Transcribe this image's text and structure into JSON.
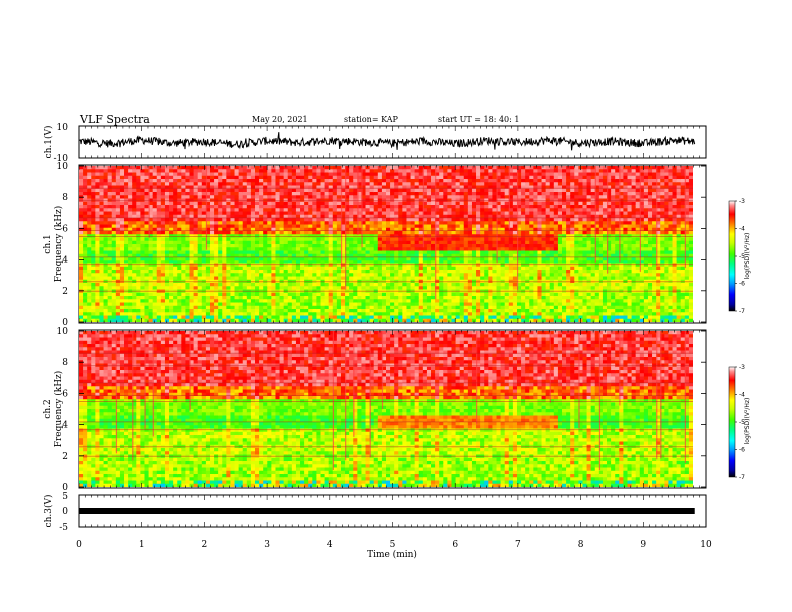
{
  "header": {
    "title": "VLF Spectra",
    "date": "May 20, 2021",
    "station": "station= KAP",
    "start": "start  UT =   18: 40: 1"
  },
  "chart_data": [
    {
      "type": "line",
      "panel": "ch1-waveform",
      "ylabel": "ch.1(V)",
      "ylim": [
        -10,
        10
      ],
      "yticks": [
        "10",
        "-10"
      ],
      "xlim": [
        0,
        10
      ],
      "data_extent_x": [
        0,
        9.82
      ],
      "series": [
        {
          "x": [
            0,
            0.5,
            1,
            1.5,
            2,
            2.5,
            3,
            3.5,
            4,
            4.5,
            5,
            5.5,
            6,
            6.5,
            7,
            7.5,
            8,
            8.5,
            9,
            9.5,
            9.82
          ],
          "values": [
            0.5,
            -1,
            1.2,
            -0.8,
            0.3,
            -1.4,
            0.8,
            -0.4,
            1,
            0.1,
            -0.8,
            0.6,
            -1.1,
            0.9,
            -0.2,
            1.1,
            -0.6,
            0.4,
            -0.9,
            1.2,
            0.3
          ]
        }
      ]
    },
    {
      "type": "heatmap",
      "panel": "ch1-spectrogram",
      "ylabel": "ch.1\nFrequency (kHz)",
      "ylim": [
        0,
        10
      ],
      "yticks": [
        "0",
        "2",
        "4",
        "6",
        "8",
        "10"
      ],
      "xlim": [
        0,
        10
      ],
      "data_extent_x": [
        0,
        9.82
      ],
      "colorbar": {
        "label": "log(PSD)(V²/Hz)",
        "range": [
          -7,
          -3
        ],
        "ticks": [
          "-3",
          "-4",
          "-5",
          "-6",
          "-7"
        ]
      }
    },
    {
      "type": "heatmap",
      "panel": "ch2-spectrogram",
      "ylabel": "ch.2\nFrequency (kHz)",
      "ylim": [
        0,
        10
      ],
      "yticks": [
        "0",
        "2",
        "4",
        "6",
        "8",
        "10"
      ],
      "xlim": [
        0,
        10
      ],
      "data_extent_x": [
        0,
        9.82
      ],
      "colorbar": {
        "label": "log(PSD)(V²/Hz)",
        "range": [
          -7,
          -3
        ],
        "ticks": [
          "-3",
          "-4",
          "-5",
          "-6",
          "-7"
        ]
      }
    },
    {
      "type": "line",
      "panel": "ch3-waveform",
      "ylabel": "ch.3(V)",
      "ylim": [
        -5,
        5
      ],
      "yticks": [
        "5",
        "0",
        "-5"
      ],
      "xlim": [
        0,
        10
      ],
      "xlabel": "Time  (min)",
      "xticks": [
        "0",
        "1",
        "2",
        "3",
        "4",
        "5",
        "6",
        "7",
        "8",
        "9",
        "10"
      ],
      "data_extent_x": [
        0,
        9.82
      ],
      "series": [
        {
          "x": [
            0,
            9.82
          ],
          "values": [
            0,
            0
          ]
        }
      ]
    }
  ]
}
